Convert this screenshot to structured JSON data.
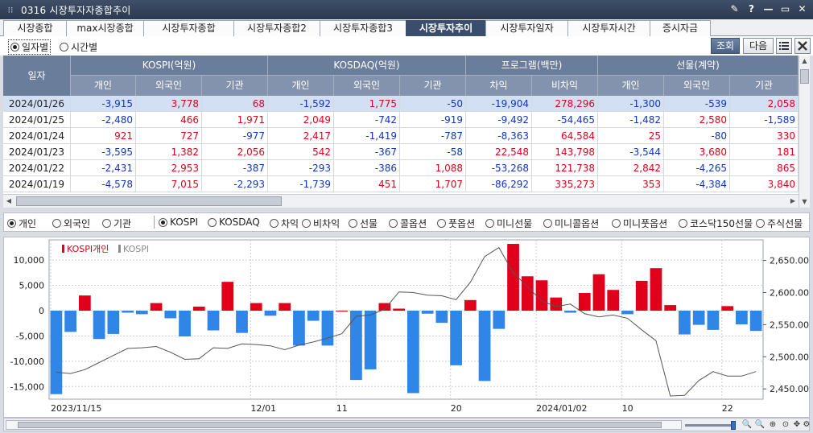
{
  "window": {
    "title": "0316 시장투자자종합추이",
    "controls": [
      "✎",
      "?",
      "—",
      "▭",
      "✕"
    ]
  },
  "tabs": [
    {
      "label": "시장종합"
    },
    {
      "label": "max시장종합"
    },
    {
      "label": "시장투자종합"
    },
    {
      "label": "시장투자종합2"
    },
    {
      "label": "시장투자종합3"
    },
    {
      "label": "시장투자추이",
      "active": true
    },
    {
      "label": "시장투자일자"
    },
    {
      "label": "시장투자시간"
    },
    {
      "label": "증시자금"
    }
  ],
  "options": {
    "period_daily": "일자별",
    "period_time": "시간별",
    "query_button": "조회",
    "next_button": "다음",
    "list_icon": "list-icon",
    "close_icon": "close-icon"
  },
  "grid": {
    "day_header": "일자",
    "groups": [
      "KOSPI(억원)",
      "KOSDAQ(억원)",
      "프로그램(백만)",
      "선물(계약)"
    ],
    "subheaders": [
      "개인",
      "외국인",
      "기관",
      "개인",
      "외국인",
      "기관",
      "차익",
      "비차익",
      "개인",
      "외국인",
      "기관"
    ],
    "rows": [
      {
        "date": "2024/01/26",
        "values": [
          "-3,915",
          "3,778",
          "68",
          "-1,592",
          "1,775",
          "-50",
          "-19,904",
          "278,296",
          "-1,300",
          "-539",
          "2,058"
        ]
      },
      {
        "date": "2024/01/25",
        "values": [
          "-2,480",
          "466",
          "1,971",
          "2,049",
          "-742",
          "-919",
          "-9,492",
          "-54,465",
          "-1,482",
          "2,580",
          "-1,589"
        ]
      },
      {
        "date": "2024/01/24",
        "values": [
          "921",
          "727",
          "-977",
          "2,417",
          "-1,419",
          "-787",
          "-8,363",
          "64,584",
          "25",
          "-80",
          "330"
        ]
      },
      {
        "date": "2024/01/23",
        "values": [
          "-3,595",
          "1,382",
          "2,056",
          "542",
          "-367",
          "-58",
          "22,548",
          "143,798",
          "-3,544",
          "3,680",
          "181"
        ]
      },
      {
        "date": "2024/01/22",
        "values": [
          "-2,431",
          "2,953",
          "-387",
          "-293",
          "-386",
          "1,088",
          "-53,268",
          "121,738",
          "2,842",
          "-4,265",
          "865"
        ]
      },
      {
        "date": "2024/01/19",
        "values": [
          "-4,578",
          "7,015",
          "-2,293",
          "-1,739",
          "451",
          "1,707",
          "-86,292",
          "335,273",
          "353",
          "-4,384",
          "3,840"
        ]
      }
    ]
  },
  "investor_options": [
    {
      "label": "개인",
      "checked": true
    },
    {
      "label": "외국인"
    },
    {
      "label": "기관"
    }
  ],
  "market_options": [
    {
      "label": "KOSPI",
      "checked": true
    },
    {
      "label": "KOSDAQ"
    },
    {
      "label": "차익"
    },
    {
      "label": "비차익"
    },
    {
      "label": "선물"
    },
    {
      "label": "콜옵션"
    },
    {
      "label": "풋옵션"
    },
    {
      "label": "미니선물"
    },
    {
      "label": "미니콜옵션"
    },
    {
      "label": "미니풋옵션"
    },
    {
      "label": "코스닥150선물"
    },
    {
      "label": "주식선물"
    }
  ],
  "chart_data": {
    "type": "bar",
    "legend": [
      "KOSPI개인",
      "KOSPI"
    ],
    "legend_colors": [
      "#e0001b",
      "#8a8a8a"
    ],
    "series": [
      {
        "name": "KOSPI개인",
        "values": [
          -16500,
          -4200,
          3000,
          -5600,
          -4600,
          -400,
          -700,
          1500,
          -1500,
          -5100,
          800,
          -3900,
          5700,
          -4400,
          1500,
          -1000,
          1500,
          -6900,
          -2000,
          -6900,
          0,
          -13700,
          -11600,
          1500,
          400,
          -16300,
          -600,
          -2400,
          -10800,
          2100,
          -13900,
          -3600,
          13200,
          6800,
          6000,
          2600,
          -400,
          3500,
          7200,
          4100,
          -700,
          5900,
          8400,
          1100,
          -4700,
          -2800,
          -3800,
          900,
          -2700,
          -4000
        ],
        "color_positive": "#e0001b",
        "color_negative": "#2f86e6"
      },
      {
        "name": "KOSPI",
        "values": [
          2476,
          2474,
          2480,
          2491,
          2502,
          2513,
          2514,
          2516,
          2507,
          2496,
          2497,
          2514,
          2513,
          2520,
          2519,
          2517,
          2511,
          2518,
          2523,
          2529,
          2536,
          2563,
          2565,
          2574,
          2601,
          2600,
          2596,
          2595,
          2589,
          2616,
          2656,
          2670,
          2631,
          2609,
          2587,
          2578,
          2582,
          2567,
          2562,
          2565,
          2560,
          2542,
          2525,
          2439,
          2440,
          2463,
          2477,
          2470,
          2470,
          2477
        ],
        "color": "#555555"
      }
    ],
    "x_tick_labels": [
      "2023/11/15",
      "12/01",
      "11",
      "20",
      "2024/01/02",
      "10",
      "22"
    ],
    "y_left": {
      "ticks": [
        "10,000",
        "5,000",
        "0",
        "-5,000",
        "-10,000",
        "-15,000"
      ],
      "range": [
        -17500,
        14000
      ]
    },
    "y_right": {
      "ticks": [
        "2,650.00",
        "2,600.00",
        "2,550.00",
        "2,500.00",
        "2,450.00"
      ],
      "range": [
        2434,
        2682
      ]
    },
    "grid": true
  },
  "toolbar_icons": [
    "zoom-out-icon",
    "zoom-in-icon",
    "zoom-fit-icon",
    "zoom-reset-icon",
    "crosshair-icon",
    "settings-icon"
  ]
}
